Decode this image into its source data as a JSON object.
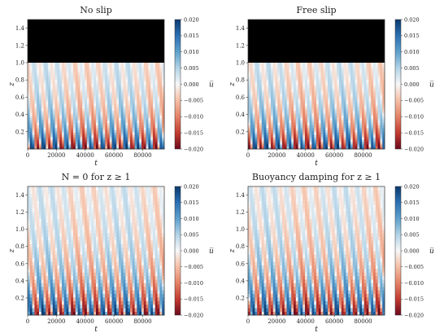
{
  "chart_data": [
    {
      "type": "heatmap",
      "title": "No slip",
      "xlabel": "t",
      "ylabel": "z",
      "xlim": [
        0,
        95000
      ],
      "ylim": [
        0,
        1.5
      ],
      "xticks": [
        0,
        20000,
        40000,
        60000,
        80000
      ],
      "xtick_labels": [
        "0",
        "20000",
        "40000",
        "60000",
        "80000"
      ],
      "yticks": [
        0.2,
        0.4,
        0.6,
        0.8,
        1.0,
        1.2,
        1.4
      ],
      "ytick_labels": [
        "0.2",
        "0.4",
        "0.6",
        "0.8",
        "1.0",
        "1.2",
        "1.4"
      ],
      "masked_region": {
        "z_from": 1.0,
        "z_to": 1.5,
        "color": "#000000"
      },
      "colorbar": {
        "label": "u̅",
        "range": [
          -0.02,
          0.02
        ],
        "ticks": [
          "0.020",
          "0.015",
          "0.010",
          "0.005",
          "0.000",
          "−0.005",
          "−0.010",
          "−0.015",
          "−0.020"
        ]
      },
      "field": {
        "band_period": 8200,
        "phase": 1200,
        "decay_height": 0.32,
        "top_extent": 1.0
      }
    },
    {
      "type": "heatmap",
      "title": "Free slip",
      "xlabel": "t",
      "ylabel": "z",
      "xlim": [
        0,
        95000
      ],
      "ylim": [
        0,
        1.5
      ],
      "xticks": [
        0,
        20000,
        40000,
        60000,
        80000
      ],
      "xtick_labels": [
        "0",
        "20000",
        "40000",
        "60000",
        "80000"
      ],
      "yticks": [
        0.2,
        0.4,
        0.6,
        0.8,
        1.0,
        1.2,
        1.4
      ],
      "ytick_labels": [
        "0.2",
        "0.4",
        "0.6",
        "0.8",
        "1.0",
        "1.2",
        "1.4"
      ],
      "masked_region": {
        "z_from": 1.0,
        "z_to": 1.5,
        "color": "#000000"
      },
      "colorbar": {
        "label": "u̅",
        "range": [
          -0.02,
          0.02
        ],
        "ticks": [
          "0.020",
          "0.015",
          "0.010",
          "0.005",
          "0.000",
          "−0.005",
          "−0.010",
          "−0.015",
          "−0.020"
        ]
      },
      "field": {
        "band_period": 8200,
        "phase": 3000,
        "decay_height": 0.34,
        "top_extent": 1.0
      }
    },
    {
      "type": "heatmap",
      "title": "N = 0 for z ≥ 1",
      "xlabel": "t",
      "ylabel": "z",
      "xlim": [
        0,
        95000
      ],
      "ylim": [
        0,
        1.5
      ],
      "xticks": [
        0,
        20000,
        40000,
        60000,
        80000
      ],
      "xtick_labels": [
        "0",
        "20000",
        "40000",
        "60000",
        "80000"
      ],
      "yticks": [
        0.2,
        0.4,
        0.6,
        0.8,
        1.0,
        1.2,
        1.4
      ],
      "ytick_labels": [
        "0.2",
        "0.4",
        "0.6",
        "0.8",
        "1.0",
        "1.2",
        "1.4"
      ],
      "masked_region": null,
      "colorbar": {
        "label": "u̅",
        "range": [
          -0.02,
          0.02
        ],
        "ticks": [
          "0.020",
          "0.015",
          "0.010",
          "0.005",
          "0.000",
          "−0.005",
          "−0.010",
          "−0.015",
          "−0.020"
        ]
      },
      "field": {
        "band_period": 8400,
        "phase": 500,
        "decay_height": 0.42,
        "top_extent": 1.5
      }
    },
    {
      "type": "heatmap",
      "title": "Buoyancy damping for z ≥ 1",
      "xlabel": "t",
      "ylabel": "z",
      "xlim": [
        0,
        95000
      ],
      "ylim": [
        0,
        1.5
      ],
      "xticks": [
        0,
        20000,
        40000,
        60000,
        80000
      ],
      "xtick_labels": [
        "0",
        "20000",
        "40000",
        "60000",
        "80000"
      ],
      "yticks": [
        0.2,
        0.4,
        0.6,
        0.8,
        1.0,
        1.2,
        1.4
      ],
      "ytick_labels": [
        "0.2",
        "0.4",
        "0.6",
        "0.8",
        "1.0",
        "1.2",
        "1.4"
      ],
      "masked_region": null,
      "colorbar": {
        "label": "u̅",
        "range": [
          -0.02,
          0.02
        ],
        "ticks": [
          "0.020",
          "0.015",
          "0.010",
          "0.005",
          "0.000",
          "−0.005",
          "−0.010",
          "−0.015",
          "−0.020"
        ]
      },
      "field": {
        "band_period": 8300,
        "phase": 2200,
        "decay_height": 0.45,
        "top_extent": 1.5
      }
    }
  ],
  "colors": {
    "positive": "#1f4e8c",
    "negative": "#a8172b",
    "zero": "#f7f7f7",
    "mask": "#000000"
  }
}
